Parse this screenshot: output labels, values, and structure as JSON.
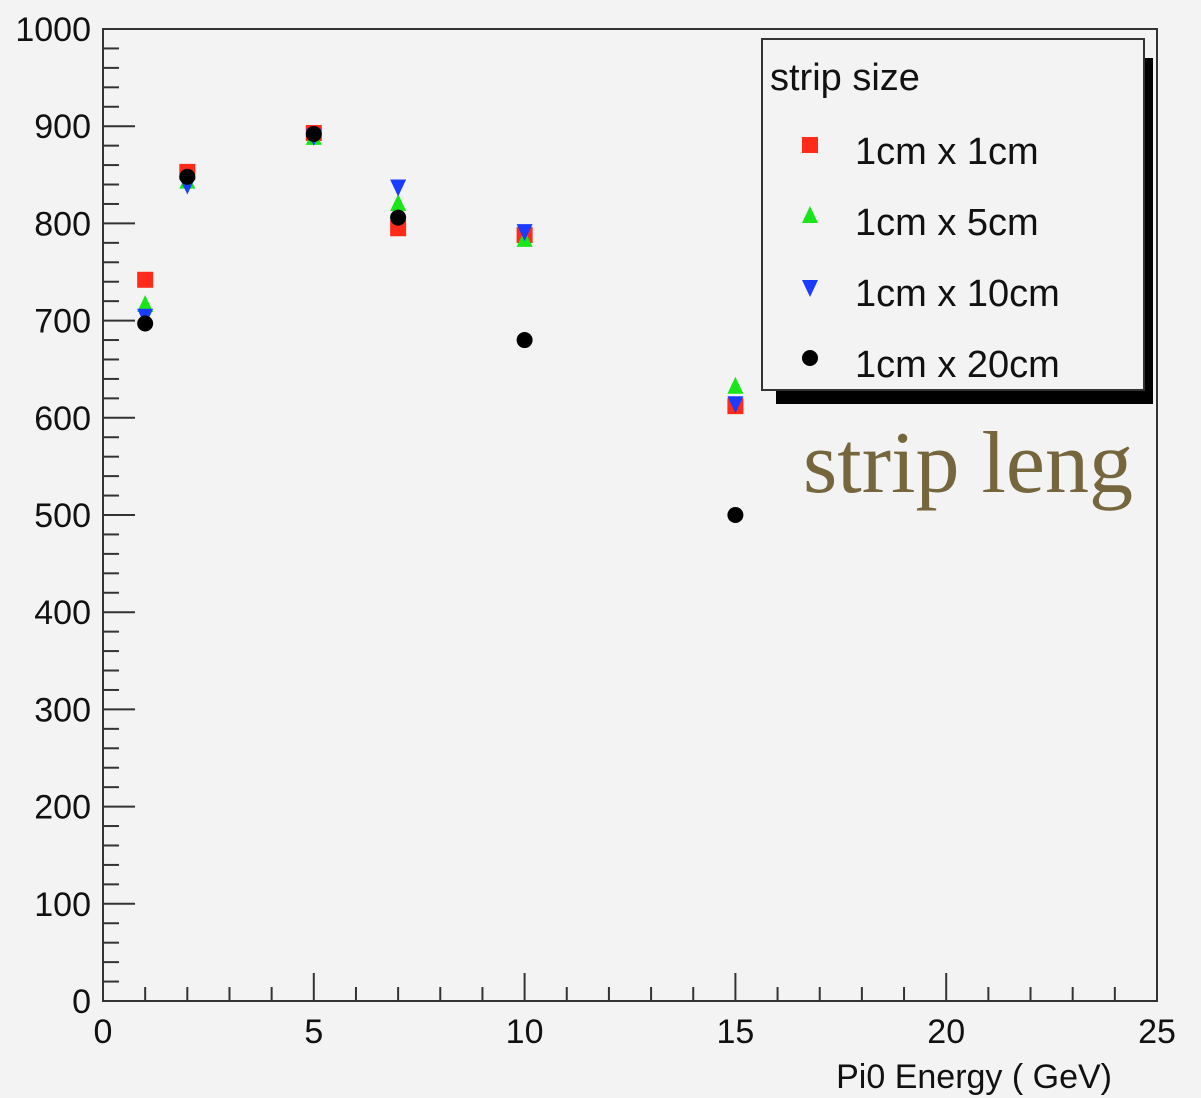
{
  "chart_data": {
    "type": "scatter",
    "title": "",
    "xlabel": "Pi0 Energy ( GeV)",
    "ylabel": "",
    "xlim": [
      0,
      25
    ],
    "ylim": [
      0,
      1000
    ],
    "x_ticks": [
      "0",
      "5",
      "10",
      "15",
      "20",
      "25"
    ],
    "y_ticks": [
      "0",
      "100",
      "200",
      "300",
      "400",
      "500",
      "600",
      "700",
      "800",
      "900",
      "1000"
    ],
    "grid": false,
    "legend": {
      "title": "strip size",
      "position": "top-right"
    },
    "series": [
      {
        "name": "1cm x 1cm",
        "marker": "square",
        "color": "#ff2a1a",
        "points": [
          [
            1,
            742
          ],
          [
            2,
            853
          ],
          [
            5,
            893
          ],
          [
            7,
            795
          ],
          [
            10,
            788
          ],
          [
            15,
            612
          ]
        ]
      },
      {
        "name": "1cm x 5cm",
        "marker": "triangle-up",
        "color": "#19e619",
        "points": [
          [
            1,
            716
          ],
          [
            2,
            843
          ],
          [
            5,
            888
          ],
          [
            7,
            820
          ],
          [
            10,
            783
          ],
          [
            15,
            632
          ]
        ]
      },
      {
        "name": "1cm x 10cm",
        "marker": "triangle-down",
        "color": "#1a3cff",
        "points": [
          [
            1,
            705
          ],
          [
            2,
            840
          ],
          [
            5,
            890
          ],
          [
            7,
            838
          ],
          [
            10,
            792
          ],
          [
            15,
            615
          ]
        ]
      },
      {
        "name": "1cm x 20cm",
        "marker": "circle",
        "color": "#000000",
        "points": [
          [
            1,
            697
          ],
          [
            2,
            848
          ],
          [
            5,
            892
          ],
          [
            7,
            806
          ],
          [
            10,
            680
          ],
          [
            15,
            500
          ]
        ]
      }
    ]
  },
  "overlay": {
    "text": "strip leng"
  }
}
